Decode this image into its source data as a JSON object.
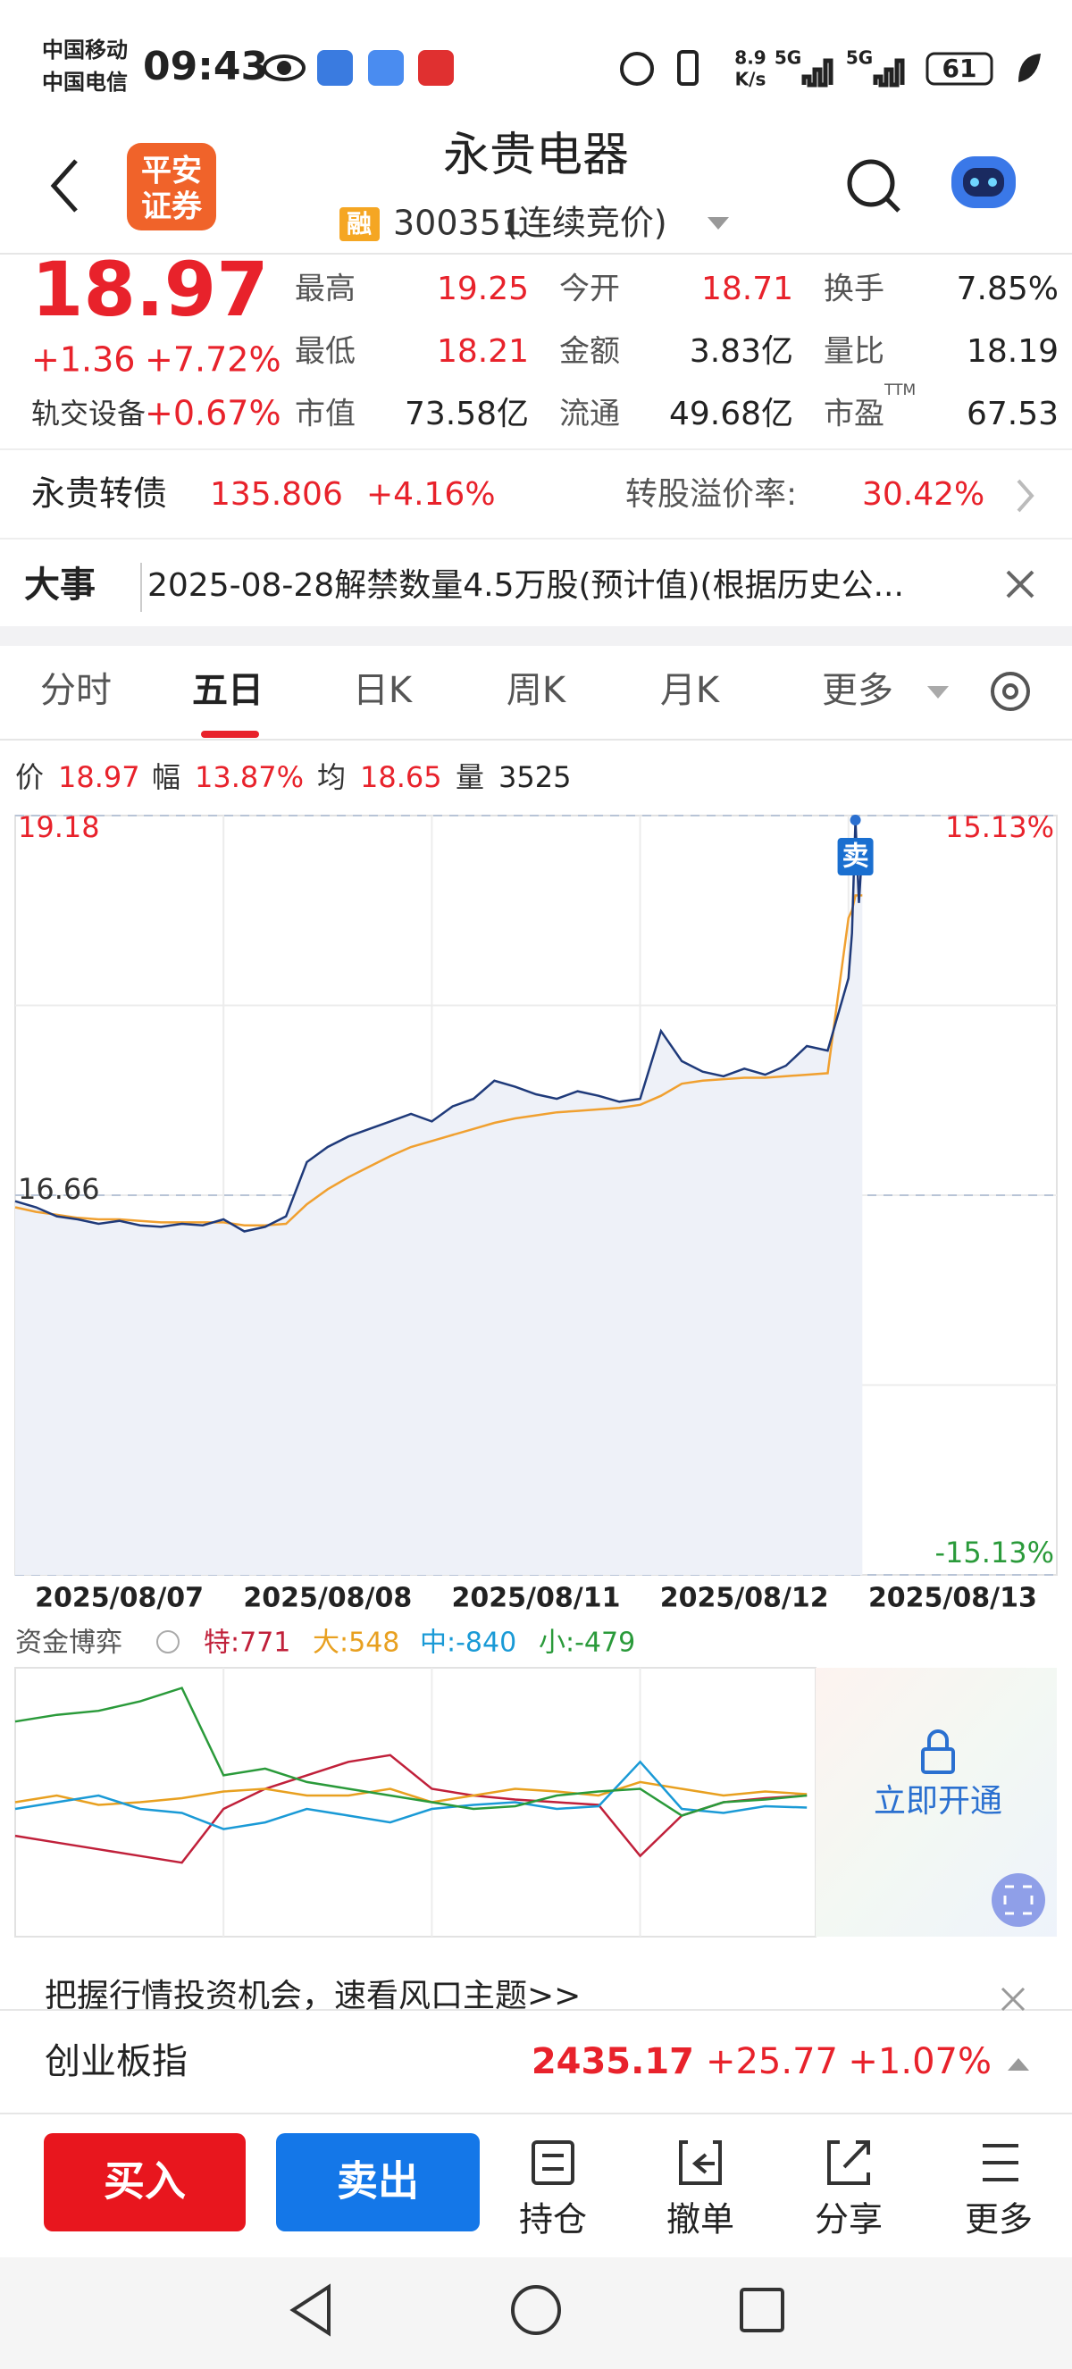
{
  "status_bar": {
    "carrier1": "中国移动",
    "carrier2": "中国电信",
    "time": "09:43",
    "speed_value": "8.9",
    "speed_unit": "K/s",
    "net1": "5G",
    "net2": "5G",
    "battery": "61"
  },
  "header": {
    "logo_line1": "平安",
    "logo_line2": "证券",
    "title": "永贵电器",
    "badge": "融",
    "code": "300351",
    "status": "(连续竞价)"
  },
  "quote": {
    "price": "18.97",
    "change": "+1.36",
    "change_pct": "+7.72%",
    "sector": "轨交设备",
    "sector_pct": "+0.67%",
    "stats": [
      {
        "label": "最高",
        "value": "19.25",
        "color": "#e8222b"
      },
      {
        "label": "最低",
        "value": "18.21",
        "color": "#e8222b"
      },
      {
        "label": "市值",
        "value": "73.58亿",
        "color": "#222222"
      },
      {
        "label": "今开",
        "value": "18.71",
        "color": "#e8222b"
      },
      {
        "label": "金额",
        "value": "3.83亿",
        "color": "#222222"
      },
      {
        "label": "流通",
        "value": "49.68亿",
        "color": "#222222"
      },
      {
        "label": "换手",
        "value": "7.85%",
        "color": "#222222"
      },
      {
        "label": "量比",
        "value": "18.19",
        "color": "#222222"
      },
      {
        "label": "市盈",
        "sup": "TTM",
        "value": "67.53",
        "color": "#222222"
      }
    ]
  },
  "bond": {
    "name": "永贵转债",
    "price": "135.806",
    "pct": "+4.16%",
    "premium_label": "转股溢价率:",
    "premium": "30.42%"
  },
  "event": {
    "label": "大事",
    "text": "2025-08-28解禁数量4.5万股(预计值)(根据历史公..."
  },
  "tabs": [
    "分时",
    "五日",
    "日K",
    "周K",
    "月K",
    "更多"
  ],
  "info": [
    {
      "label": "价",
      "value": "18.97"
    },
    {
      "label": "幅",
      "value": "13.87%"
    },
    {
      "label": "均",
      "value": "18.65"
    },
    {
      "label": "量",
      "value": "3525"
    }
  ],
  "price_chart": {
    "type": "line",
    "categories": [
      "2025/08/07",
      "2025/08/08",
      "2025/08/11",
      "2025/08/12",
      "2025/08/13"
    ],
    "xlim": [
      0,
      1200
    ],
    "x": [
      0,
      24,
      48,
      72,
      96,
      120,
      144,
      168,
      192,
      216,
      240,
      264,
      288,
      312,
      336,
      360,
      384,
      408,
      432,
      456,
      480,
      504,
      528,
      552,
      576,
      600,
      624,
      648,
      672,
      696,
      720,
      744,
      768,
      792,
      816,
      840,
      864,
      888,
      912,
      936,
      960,
      964,
      968,
      972,
      976
    ],
    "ylim": [
      14.14,
      19.18
    ],
    "yticks": [
      14.14,
      16.66,
      19.18
    ],
    "right_labels": [
      "15.13%",
      "-15.13%"
    ],
    "sell_marker": "卖",
    "series": [
      {
        "color": "#1f3a7a",
        "values": [
          16.62,
          16.58,
          16.52,
          16.5,
          16.47,
          16.49,
          16.46,
          16.45,
          16.47,
          16.46,
          16.5,
          16.42,
          16.45,
          16.52,
          16.88,
          16.98,
          17.05,
          17.1,
          17.15,
          17.2,
          17.15,
          17.25,
          17.3,
          17.42,
          17.38,
          17.33,
          17.3,
          17.35,
          17.32,
          17.28,
          17.3,
          17.75,
          17.55,
          17.48,
          17.45,
          17.5,
          17.46,
          17.52,
          17.65,
          17.62,
          18.1,
          18.4,
          19.15,
          18.6,
          18.97
        ]
      },
      {
        "color": "#f0a030",
        "values": [
          16.58,
          16.55,
          16.53,
          16.51,
          16.5,
          16.5,
          16.49,
          16.48,
          16.48,
          16.48,
          16.48,
          16.46,
          16.46,
          16.47,
          16.6,
          16.7,
          16.78,
          16.85,
          16.92,
          16.98,
          17.02,
          17.06,
          17.1,
          17.14,
          17.17,
          17.19,
          17.21,
          17.22,
          17.23,
          17.24,
          17.26,
          17.32,
          17.4,
          17.42,
          17.43,
          17.44,
          17.44,
          17.45,
          17.46,
          17.47,
          18.5,
          18.55,
          18.65,
          18.65,
          18.65
        ]
      }
    ]
  },
  "flow_chart": {
    "type": "line",
    "title": "资金博弈",
    "xlim": [
      0,
      1200
    ],
    "x": [
      0,
      48,
      96,
      144,
      192,
      240,
      288,
      336,
      384,
      432,
      480,
      528,
      576,
      624,
      672,
      720,
      768,
      816,
      864,
      912
    ],
    "ylim": [
      -100,
      100
    ],
    "series": [
      {
        "name": "特:771",
        "color": "#c0203a",
        "values": [
          -25,
          -30,
          -35,
          -40,
          -45,
          -5,
          10,
          20,
          30,
          35,
          10,
          5,
          2,
          0,
          -2,
          -40,
          -10,
          0,
          3,
          5
        ]
      },
      {
        "name": "大:548",
        "color": "#e8a020",
        "values": [
          0,
          5,
          -2,
          0,
          3,
          8,
          10,
          5,
          5,
          10,
          0,
          5,
          10,
          8,
          5,
          15,
          10,
          5,
          8,
          6
        ]
      },
      {
        "name": "中:-840",
        "color": "#1a9ad6",
        "values": [
          -5,
          0,
          5,
          -5,
          -8,
          -20,
          -15,
          -5,
          -10,
          -15,
          -5,
          -2,
          0,
          -5,
          -3,
          30,
          -5,
          -8,
          -3,
          -4
        ]
      },
      {
        "name": "小:-479",
        "color": "#2a9a3a",
        "values": [
          60,
          65,
          68,
          75,
          85,
          20,
          25,
          15,
          10,
          5,
          0,
          -5,
          -3,
          5,
          8,
          10,
          -10,
          0,
          2,
          5
        ]
      }
    ],
    "unlock": "立即开通"
  },
  "banner": "把握行情投资机会，速看风口主题>>",
  "index": {
    "name": "创业板指",
    "value": "2435.17",
    "change": "+25.77",
    "pct": "+1.07%"
  },
  "actions": {
    "buy": "买入",
    "sell": "卖出",
    "tools": [
      "持仓",
      "撤单",
      "分享",
      "更多"
    ]
  }
}
